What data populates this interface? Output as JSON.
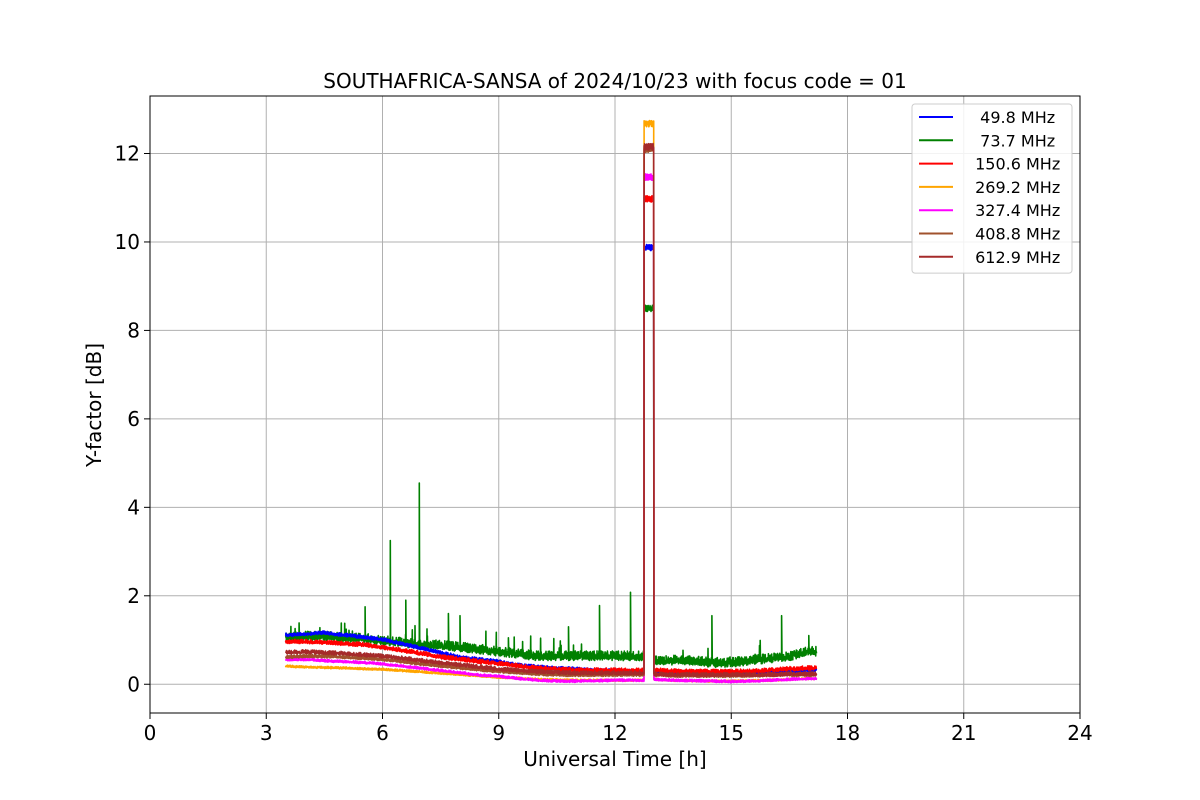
{
  "chart_data": {
    "type": "line",
    "title": "SOUTHAFRICA-SANSA of 2024/10/23 with focus code = 01",
    "xlabel": "Universal Time [h]",
    "ylabel": "Y-factor [dB]",
    "xlim": [
      0,
      24
    ],
    "ylim": [
      -0.65,
      13.3
    ],
    "xticks": [
      0,
      3,
      6,
      9,
      12,
      15,
      18,
      21,
      24
    ],
    "yticks": [
      0,
      2,
      4,
      6,
      8,
      10,
      12
    ],
    "grid": true,
    "legend_position": "top-right",
    "data_start_h": 3.5,
    "data_end_h": 17.2,
    "burst_start_h": 12.75,
    "burst_end_h": 13.0,
    "series": [
      {
        "name": "  49.8 MHz",
        "color": "#0000ff",
        "x": [
          3.5,
          4.0,
          4.5,
          5.0,
          5.5,
          6.0,
          6.5,
          7.0,
          7.5,
          8.0,
          8.5,
          9.0,
          9.5,
          10.0,
          10.5,
          11.0,
          11.5,
          12.0,
          12.5,
          12.75,
          12.76,
          12.99,
          13.0,
          13.5,
          14.0,
          14.5,
          15.0,
          15.5,
          16.0,
          16.5,
          17.0,
          17.2
        ],
        "y": [
          1.1,
          1.12,
          1.15,
          1.1,
          1.05,
          1.0,
          0.9,
          0.8,
          0.7,
          0.6,
          0.55,
          0.5,
          0.42,
          0.38,
          0.35,
          0.33,
          0.3,
          0.3,
          0.28,
          0.28,
          9.87,
          9.87,
          0.28,
          0.25,
          0.25,
          0.23,
          0.22,
          0.23,
          0.25,
          0.28,
          0.3,
          0.3
        ]
      },
      {
        "name": "  73.7 MHz",
        "color": "#008000",
        "x": [
          3.5,
          4.0,
          4.5,
          5.0,
          5.5,
          6.0,
          6.5,
          7.0,
          7.5,
          8.0,
          8.5,
          9.0,
          9.5,
          10.0,
          10.5,
          11.0,
          11.5,
          12.0,
          12.5,
          12.75,
          12.76,
          12.99,
          13.0,
          13.5,
          14.0,
          14.5,
          15.0,
          15.5,
          16.0,
          16.5,
          17.0,
          17.2
        ],
        "y": [
          1.0,
          1.05,
          1.05,
          1.0,
          1.0,
          0.95,
          0.9,
          0.85,
          0.85,
          0.8,
          0.75,
          0.7,
          0.65,
          0.6,
          0.6,
          0.6,
          0.6,
          0.6,
          0.6,
          0.6,
          8.5,
          8.5,
          0.5,
          0.5,
          0.5,
          0.45,
          0.45,
          0.5,
          0.55,
          0.6,
          0.7,
          0.7
        ],
        "spikes": [
          [
            5.55,
            1.75
          ],
          [
            6.2,
            3.25
          ],
          [
            6.6,
            1.9
          ],
          [
            6.95,
            4.55
          ],
          [
            7.7,
            1.6
          ],
          [
            8.0,
            1.55
          ],
          [
            9.25,
            1.05
          ],
          [
            10.8,
            1.3
          ],
          [
            11.6,
            1.78
          ],
          [
            12.4,
            2.08
          ],
          [
            14.5,
            1.55
          ],
          [
            16.3,
            1.55
          ],
          [
            17.0,
            1.1
          ]
        ]
      },
      {
        "name": " 150.6 MHz",
        "color": "#ff0000",
        "x": [
          3.5,
          4.0,
          4.5,
          5.0,
          5.5,
          6.0,
          6.5,
          7.0,
          7.5,
          8.0,
          8.5,
          9.0,
          9.5,
          10.0,
          10.5,
          11.0,
          11.5,
          12.0,
          12.5,
          12.75,
          12.76,
          12.99,
          13.0,
          13.5,
          14.0,
          14.5,
          15.0,
          15.5,
          16.0,
          16.5,
          17.0,
          17.2
        ],
        "y": [
          0.95,
          0.95,
          0.93,
          0.9,
          0.88,
          0.82,
          0.75,
          0.68,
          0.6,
          0.55,
          0.5,
          0.45,
          0.4,
          0.35,
          0.32,
          0.3,
          0.3,
          0.3,
          0.3,
          0.3,
          10.97,
          10.97,
          0.3,
          0.28,
          0.27,
          0.27,
          0.27,
          0.28,
          0.3,
          0.33,
          0.35,
          0.35
        ]
      },
      {
        "name": " 269.2 MHz",
        "color": "#ffa500",
        "x": [
          3.5,
          4.0,
          4.5,
          5.0,
          5.5,
          6.0,
          6.5,
          7.0,
          7.5,
          8.0,
          8.5,
          9.0,
          9.5,
          10.0,
          10.5,
          11.0,
          11.5,
          12.0,
          12.5,
          12.75,
          12.76,
          12.99,
          13.0,
          13.5,
          14.0,
          14.5,
          15.0,
          15.5,
          16.0,
          16.5,
          17.0,
          17.2
        ],
        "y": [
          0.4,
          0.38,
          0.37,
          0.36,
          0.34,
          0.33,
          0.3,
          0.27,
          0.24,
          0.21,
          0.18,
          0.15,
          0.13,
          0.1,
          0.09,
          0.08,
          0.08,
          0.08,
          0.08,
          0.08,
          12.67,
          12.67,
          0.1,
          0.08,
          0.07,
          0.06,
          0.06,
          0.07,
          0.08,
          0.1,
          0.12,
          0.12
        ]
      },
      {
        "name": " 327.4 MHz",
        "color": "#ff00ff",
        "x": [
          3.5,
          4.0,
          4.5,
          5.0,
          5.5,
          6.0,
          6.5,
          7.0,
          7.5,
          8.0,
          8.5,
          9.0,
          9.5,
          10.0,
          10.5,
          11.0,
          11.5,
          12.0,
          12.5,
          12.75,
          12.76,
          12.99,
          13.0,
          13.5,
          14.0,
          14.5,
          15.0,
          15.5,
          16.0,
          16.5,
          17.0,
          17.2
        ],
        "y": [
          0.55,
          0.55,
          0.52,
          0.5,
          0.48,
          0.45,
          0.4,
          0.35,
          0.3,
          0.25,
          0.2,
          0.17,
          0.12,
          0.08,
          0.06,
          0.06,
          0.07,
          0.08,
          0.08,
          0.08,
          11.47,
          11.47,
          0.1,
          0.08,
          0.07,
          0.06,
          0.05,
          0.06,
          0.08,
          0.1,
          0.12,
          0.12
        ]
      },
      {
        "name": " 408.8 MHz",
        "color": "#a0522d",
        "x": [
          3.5,
          4.0,
          4.5,
          5.0,
          5.5,
          6.0,
          6.5,
          7.0,
          7.5,
          8.0,
          8.5,
          9.0,
          9.5,
          10.0,
          10.5,
          11.0,
          11.5,
          12.0,
          12.5,
          12.75,
          12.76,
          12.99,
          13.0,
          13.5,
          14.0,
          14.5,
          15.0,
          15.5,
          16.0,
          16.5,
          17.0,
          17.2
        ],
        "y": [
          0.6,
          0.62,
          0.62,
          0.6,
          0.58,
          0.55,
          0.5,
          0.45,
          0.4,
          0.36,
          0.32,
          0.28,
          0.25,
          0.22,
          0.2,
          0.2,
          0.2,
          0.2,
          0.2,
          0.2,
          12.1,
          12.1,
          0.2,
          0.18,
          0.18,
          0.18,
          0.18,
          0.18,
          0.2,
          0.2,
          0.2,
          0.2
        ]
      },
      {
        "name": " 612.9 MHz",
        "color": "#a52a2a",
        "x": [
          3.5,
          4.0,
          4.5,
          5.0,
          5.5,
          6.0,
          6.5,
          7.0,
          7.5,
          8.0,
          8.5,
          9.0,
          9.5,
          10.0,
          10.5,
          11.0,
          11.5,
          12.0,
          12.5,
          12.75,
          12.76,
          12.99,
          13.0,
          13.5,
          14.0,
          14.5,
          15.0,
          15.5,
          16.0,
          16.5,
          17.0,
          17.2
        ],
        "y": [
          0.7,
          0.72,
          0.7,
          0.68,
          0.65,
          0.62,
          0.58,
          0.52,
          0.47,
          0.42,
          0.38,
          0.33,
          0.3,
          0.27,
          0.25,
          0.24,
          0.24,
          0.24,
          0.24,
          0.24,
          12.15,
          12.15,
          0.22,
          0.2,
          0.2,
          0.2,
          0.2,
          0.2,
          0.2,
          0.22,
          0.22,
          0.22
        ]
      }
    ]
  }
}
